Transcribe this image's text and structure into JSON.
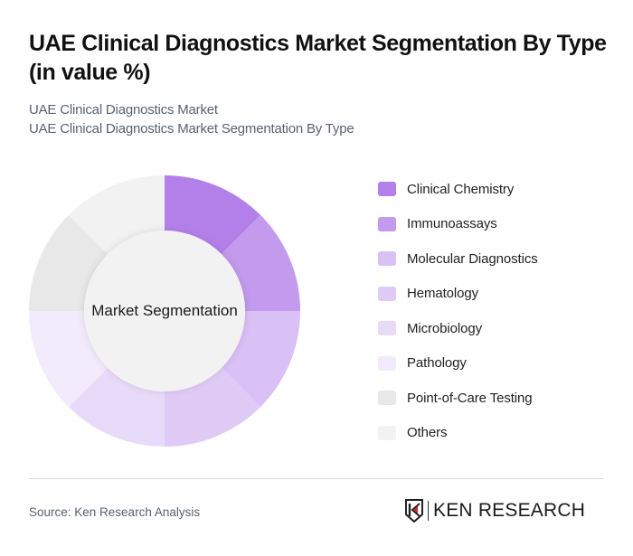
{
  "header": {
    "title": "UAE Clinical Diagnostics Market Segmentation By Type (in value %)",
    "subtitle_line1": "UAE Clinical Diagnostics Market",
    "subtitle_line2": "UAE Clinical Diagnostics Market Segmentation By Type"
  },
  "chart_data": {
    "type": "pie",
    "variant": "donut",
    "title": "UAE Clinical Diagnostics Market Segmentation By Type (in value %)",
    "center_label": "Market Segmentation",
    "categories": [
      "Clinical Chemistry",
      "Immunoassays",
      "Molecular Diagnostics",
      "Hematology",
      "Microbiology",
      "Pathology",
      "Point-of-Care Testing",
      "Others"
    ],
    "values": [
      12.5,
      12.5,
      12.5,
      12.5,
      12.5,
      12.5,
      12.5,
      12.5
    ],
    "colors": [
      "#b380ea",
      "#c39aed",
      "#d9c0f5",
      "#e0cbf6",
      "#e8dbf9",
      "#f1ebfb",
      "#e8e8e8",
      "#f2f2f2"
    ],
    "legend_position": "right",
    "note": "slices rendered as equal segments; no percentage labels shown"
  },
  "legend": {
    "items": [
      {
        "label": "Clinical Chemistry",
        "color": "#b380ea"
      },
      {
        "label": "Immunoassays",
        "color": "#c39aed"
      },
      {
        "label": "Molecular Diagnostics",
        "color": "#d9c0f5"
      },
      {
        "label": "Hematology",
        "color": "#e0cbf6"
      },
      {
        "label": "Microbiology",
        "color": "#e8dbf9"
      },
      {
        "label": "Pathology",
        "color": "#f1ebfb"
      },
      {
        "label": "Point-of-Care Testing",
        "color": "#e8e8e8"
      },
      {
        "label": "Others",
        "color": "#f2f2f2"
      }
    ]
  },
  "footer": {
    "source": "Source: Ken Research Analysis",
    "logo_text": "KEN RESEARCH"
  }
}
